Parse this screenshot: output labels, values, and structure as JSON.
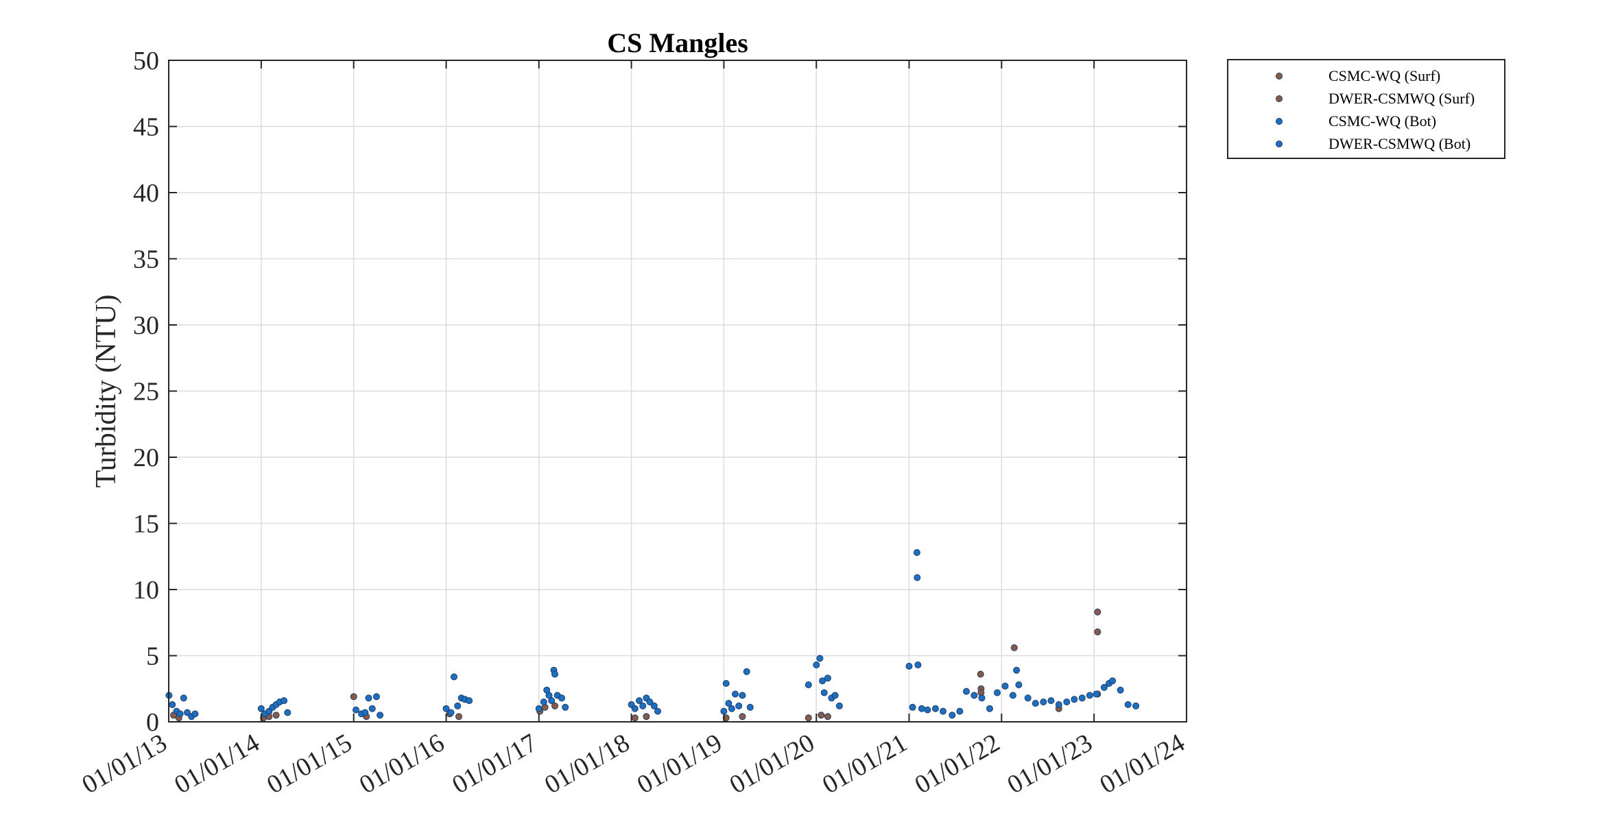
{
  "chart_data": {
    "type": "scatter",
    "title": "CS Mangles",
    "xlabel": "",
    "ylabel": "Turbidity (NTU)",
    "x_axis_type": "date",
    "xlim": [
      "2013-01-01",
      "2024-01-01"
    ],
    "ylim": [
      0,
      50
    ],
    "x_ticks": [
      "01/01/13",
      "01/01/14",
      "01/01/15",
      "01/01/16",
      "01/01/17",
      "01/01/18",
      "01/01/19",
      "01/01/20",
      "01/01/21",
      "01/01/22",
      "01/01/23",
      "01/01/24"
    ],
    "y_ticks": [
      0,
      5,
      10,
      15,
      20,
      25,
      30,
      35,
      40,
      45,
      50
    ],
    "grid": true,
    "legend_position": "outside top-right",
    "series": [
      {
        "name": "CSMC-WQ (Surf)",
        "color": "#8B5A44",
        "points": [
          [
            "2013-01-20",
            0.5
          ],
          [
            "2013-02-10",
            0.3
          ],
          [
            "2014-01-10",
            0.3
          ],
          [
            "2014-02-01",
            0.4
          ],
          [
            "2014-03-01",
            0.5
          ],
          [
            "2015-01-01",
            1.9
          ],
          [
            "2015-02-20",
            0.4
          ],
          [
            "2016-01-15",
            0.6
          ],
          [
            "2016-02-20",
            0.4
          ],
          [
            "2017-01-05",
            0.8
          ],
          [
            "2017-01-25",
            1.1
          ],
          [
            "2017-03-05",
            1.2
          ],
          [
            "2018-01-15",
            0.3
          ],
          [
            "2018-03-01",
            0.4
          ],
          [
            "2019-01-10",
            0.3
          ],
          [
            "2019-03-15",
            0.4
          ],
          [
            "2019-12-01",
            0.3
          ],
          [
            "2020-01-20",
            0.5
          ],
          [
            "2020-02-15",
            0.4
          ]
        ]
      },
      {
        "name": "DWER-CSMWQ (Surf)",
        "color": "#8B5A44",
        "points": [
          [
            "2021-10-10",
            3.6
          ],
          [
            "2021-10-12",
            2.5
          ],
          [
            "2021-10-12",
            2.2
          ],
          [
            "2022-02-20",
            5.6
          ],
          [
            "2023-01-15",
            8.3
          ],
          [
            "2023-01-15",
            6.8
          ],
          [
            "2023-01-15",
            2.1
          ],
          [
            "2022-08-15",
            1.0
          ]
        ]
      },
      {
        "name": "CSMC-WQ (Bot)",
        "color": "#1f6fc0",
        "points": [
          [
            "2013-01-02",
            2.0
          ],
          [
            "2013-01-15",
            1.3
          ],
          [
            "2013-02-01",
            0.8
          ],
          [
            "2013-02-15",
            0.6
          ],
          [
            "2013-03-01",
            1.8
          ],
          [
            "2013-03-15",
            0.7
          ],
          [
            "2013-04-01",
            0.4
          ],
          [
            "2013-04-15",
            0.6
          ],
          [
            "2014-01-01",
            1.0
          ],
          [
            "2014-01-15",
            0.6
          ],
          [
            "2014-02-01",
            0.8
          ],
          [
            "2014-02-15",
            1.1
          ],
          [
            "2014-03-01",
            1.3
          ],
          [
            "2014-03-15",
            1.5
          ],
          [
            "2014-04-01",
            1.6
          ],
          [
            "2014-04-15",
            0.7
          ],
          [
            "2015-01-10",
            0.9
          ],
          [
            "2015-02-01",
            0.6
          ],
          [
            "2015-02-15",
            0.7
          ],
          [
            "2015-03-01",
            1.8
          ],
          [
            "2015-03-15",
            1.0
          ],
          [
            "2015-04-01",
            1.9
          ],
          [
            "2015-04-15",
            0.5
          ],
          [
            "2016-01-01",
            1.0
          ],
          [
            "2016-01-20",
            0.7
          ],
          [
            "2016-02-01",
            3.4
          ],
          [
            "2016-02-15",
            1.2
          ],
          [
            "2016-03-01",
            1.8
          ],
          [
            "2016-03-15",
            1.7
          ],
          [
            "2016-04-01",
            1.6
          ],
          [
            "2017-01-01",
            1.0
          ],
          [
            "2017-01-20",
            1.5
          ],
          [
            "2017-02-01",
            2.4
          ],
          [
            "2017-02-10",
            2.0
          ],
          [
            "2017-02-20",
            1.6
          ],
          [
            "2017-03-01",
            3.9
          ],
          [
            "2017-03-05",
            3.6
          ],
          [
            "2017-03-15",
            2.0
          ],
          [
            "2017-04-01",
            1.8
          ],
          [
            "2017-04-15",
            1.1
          ],
          [
            "2018-01-01",
            1.3
          ],
          [
            "2018-01-15",
            1.0
          ],
          [
            "2018-02-01",
            1.6
          ],
          [
            "2018-02-15",
            1.2
          ],
          [
            "2018-03-01",
            1.8
          ],
          [
            "2018-03-15",
            1.5
          ],
          [
            "2018-04-01",
            1.2
          ],
          [
            "2018-04-15",
            0.8
          ],
          [
            "2019-01-01",
            0.8
          ],
          [
            "2019-01-10",
            2.9
          ],
          [
            "2019-01-20",
            1.4
          ],
          [
            "2019-02-01",
            1.0
          ],
          [
            "2019-02-15",
            2.1
          ],
          [
            "2019-03-01",
            1.2
          ],
          [
            "2019-03-15",
            2.0
          ],
          [
            "2019-04-01",
            3.8
          ],
          [
            "2019-04-15",
            1.1
          ],
          [
            "2019-12-01",
            2.8
          ],
          [
            "2020-01-01",
            4.3
          ],
          [
            "2020-01-15",
            4.8
          ],
          [
            "2020-01-25",
            3.1
          ],
          [
            "2020-02-01",
            2.2
          ],
          [
            "2020-02-15",
            3.3
          ],
          [
            "2020-03-01",
            1.8
          ],
          [
            "2020-03-15",
            2.0
          ],
          [
            "2020-04-01",
            1.2
          ]
        ]
      },
      {
        "name": "DWER-CSMWQ (Bot)",
        "color": "#1f6fc0",
        "points": [
          [
            "2021-01-01",
            4.2
          ],
          [
            "2021-01-15",
            1.1
          ],
          [
            "2021-02-01",
            12.8
          ],
          [
            "2021-02-02",
            10.9
          ],
          [
            "2021-02-05",
            4.3
          ],
          [
            "2021-02-20",
            1.0
          ],
          [
            "2021-03-15",
            0.9
          ],
          [
            "2021-04-15",
            1.0
          ],
          [
            "2021-05-15",
            0.8
          ],
          [
            "2021-06-20",
            0.5
          ],
          [
            "2021-07-20",
            0.8
          ],
          [
            "2021-08-15",
            2.3
          ],
          [
            "2021-09-15",
            2.0
          ],
          [
            "2021-10-15",
            1.8
          ],
          [
            "2021-11-15",
            1.0
          ],
          [
            "2021-12-15",
            2.2
          ],
          [
            "2022-01-15",
            2.7
          ],
          [
            "2022-02-15",
            2.0
          ],
          [
            "2022-03-01",
            3.9
          ],
          [
            "2022-03-10",
            2.8
          ],
          [
            "2022-04-15",
            1.8
          ],
          [
            "2022-05-15",
            1.4
          ],
          [
            "2022-06-15",
            1.5
          ],
          [
            "2022-07-15",
            1.6
          ],
          [
            "2022-08-15",
            1.3
          ],
          [
            "2022-09-15",
            1.5
          ],
          [
            "2022-10-15",
            1.7
          ],
          [
            "2022-11-15",
            1.8
          ],
          [
            "2022-12-15",
            2.0
          ],
          [
            "2023-01-10",
            2.1
          ],
          [
            "2023-02-10",
            2.6
          ],
          [
            "2023-03-01",
            2.9
          ],
          [
            "2023-03-15",
            3.1
          ],
          [
            "2023-04-15",
            2.4
          ],
          [
            "2023-05-15",
            1.3
          ],
          [
            "2023-06-15",
            1.2
          ]
        ]
      }
    ]
  }
}
